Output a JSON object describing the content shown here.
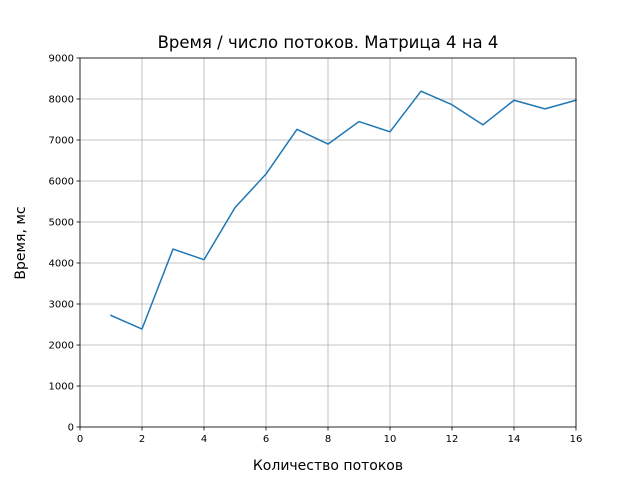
{
  "chart_data": {
    "type": "line",
    "title": "Время / число потоков. Матрица 4 на 4",
    "xlabel": "Количество потоков",
    "ylabel": "Время, мс",
    "xlim": [
      0,
      16
    ],
    "ylim": [
      0,
      9000
    ],
    "xticks": [
      "0",
      "2",
      "4",
      "6",
      "8",
      "10",
      "12",
      "14",
      "16"
    ],
    "yticks": [
      "0",
      "1000",
      "2000",
      "3000",
      "4000",
      "5000",
      "6000",
      "7000",
      "8000",
      "9000"
    ],
    "grid": true,
    "series": [
      {
        "color": "#1f77b4",
        "x": [
          1,
          2,
          3,
          4,
          5,
          6,
          7,
          8,
          9,
          10,
          11,
          12,
          13,
          14,
          15,
          16
        ],
        "y": [
          2720,
          2390,
          4340,
          4080,
          5350,
          6170,
          7260,
          6900,
          7450,
          7200,
          8190,
          7860,
          7370,
          7970,
          7760,
          7970
        ]
      }
    ]
  }
}
